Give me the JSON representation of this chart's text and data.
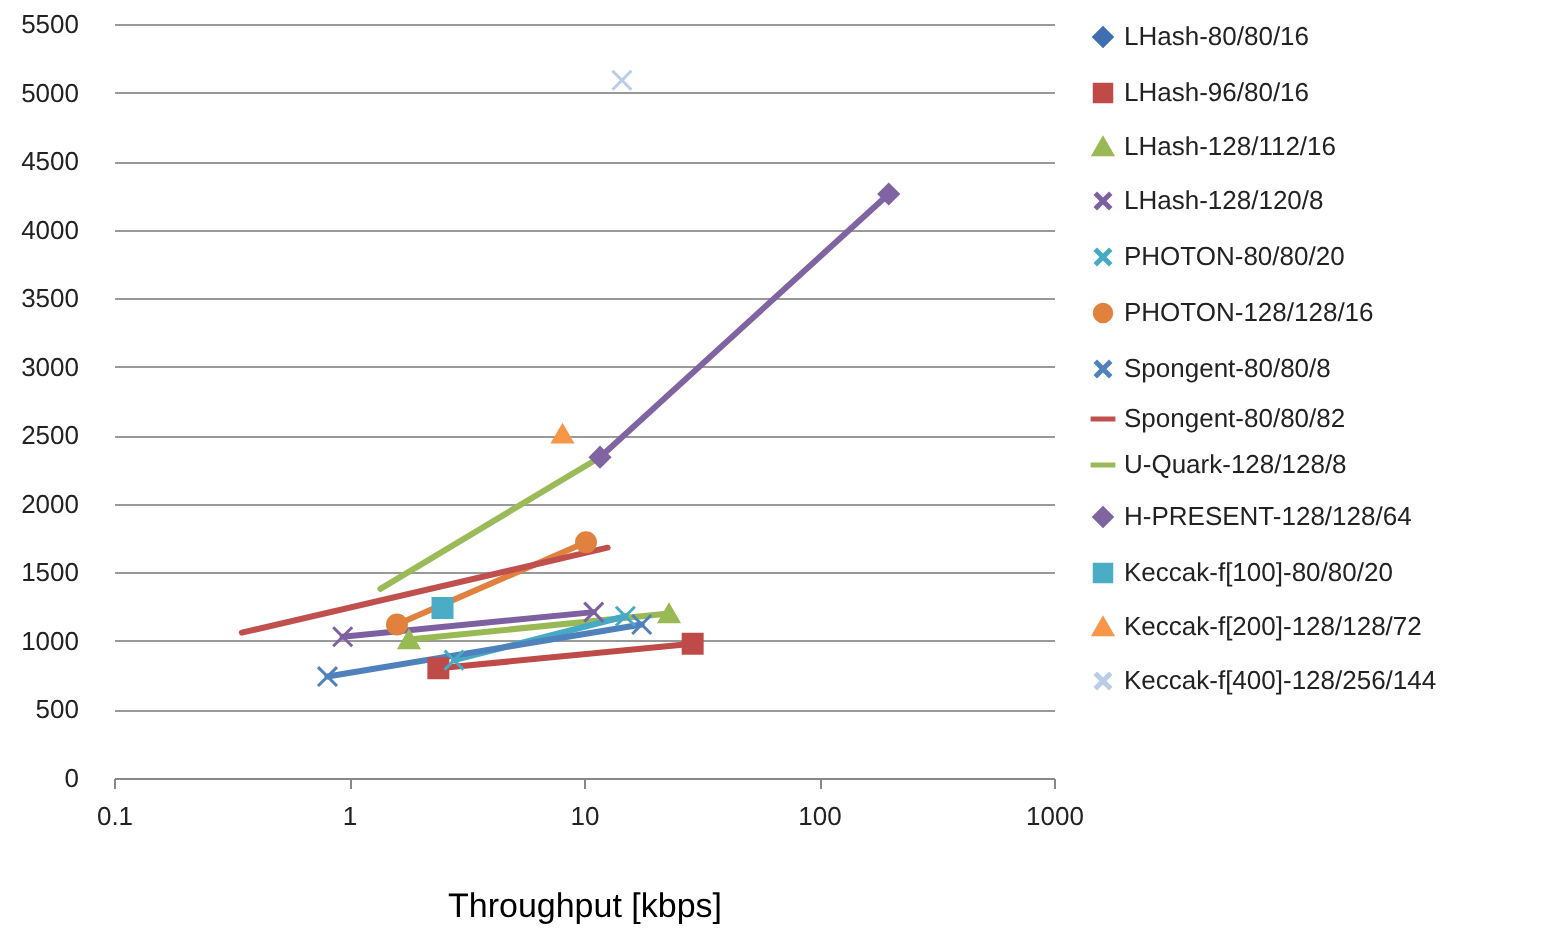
{
  "chart_data": {
    "type": "line",
    "xlabel": "Throughput [kbps]",
    "log": "x",
    "xlim": [
      0.1,
      1000
    ],
    "xticks": [
      0.1,
      1,
      10,
      100,
      1000
    ],
    "ylim": [
      0,
      5500
    ],
    "yticks": [
      0,
      500,
      1000,
      1500,
      2000,
      2500,
      3000,
      3500,
      4000,
      4500,
      5000,
      5500
    ],
    "grid": "y",
    "legend": "right",
    "series": [
      {
        "name": "LHash-80/80/16",
        "color": "#3f6fb0",
        "marker": "diamond"
      },
      {
        "name": "LHash-96/80/16",
        "color": "#be4b48",
        "marker": "square",
        "x": [
          2.4,
          29
        ],
        "values": [
          800,
          980
        ]
      },
      {
        "name": "LHash-128/112/16",
        "color": "#98b954",
        "marker": "triangle",
        "x": [
          1.8,
          23
        ],
        "values": [
          1010,
          1200
        ]
      },
      {
        "name": "LHash-128/120/8",
        "color": "#7d60a0",
        "marker": "cross",
        "x": [
          0.94,
          11
        ],
        "values": [
          1030,
          1210
        ]
      },
      {
        "name": "PHOTON-80/80/20",
        "color": "#46aac5",
        "marker": "cross",
        "x": [
          2.8,
          15
        ],
        "values": [
          860,
          1180
        ]
      },
      {
        "name": "PHOTON-128/128/16",
        "color": "#e0823d",
        "marker": "circle",
        "x": [
          1.6,
          10.2
        ],
        "values": [
          1120,
          1720
        ]
      },
      {
        "name": "Spongent-80/80/8",
        "color": "#4f81bd",
        "marker": "cross",
        "x": [
          0.81,
          17.6
        ],
        "values": [
          740,
          1120
        ]
      },
      {
        "name": "Spongent-80/80/82",
        "color": "#c0504d",
        "marker": "none",
        "x": [
          0.35,
          12.6
        ],
        "values": [
          1060,
          1680
        ]
      },
      {
        "name": "U-Quark-128/128/8",
        "color": "#9bbb59",
        "marker": "none",
        "x": [
          1.36,
          11.7
        ],
        "values": [
          1380,
          2340
        ]
      },
      {
        "name": "H-PRESENT-128/128/64",
        "color": "#8064a2",
        "marker": "diamond",
        "x": [
          11.7,
          198
        ],
        "values": [
          2340,
          4260
        ]
      },
      {
        "name": "Keccak-f[100]-80/80/20",
        "color": "#4bacc6",
        "marker": "square",
        "type": "scatter",
        "x": [
          2.5
        ],
        "values": [
          1240
        ]
      },
      {
        "name": "Keccak-f[200]-128/128/72",
        "color": "#f79646",
        "marker": "triangle",
        "type": "scatter",
        "x": [
          8.1
        ],
        "values": [
          2510
        ]
      },
      {
        "name": "Keccak-f[400]-128/256/144",
        "color": "#b9cde5",
        "marker": "cross",
        "type": "scatter",
        "x": [
          14.5
        ],
        "values": [
          5090
        ]
      }
    ]
  }
}
